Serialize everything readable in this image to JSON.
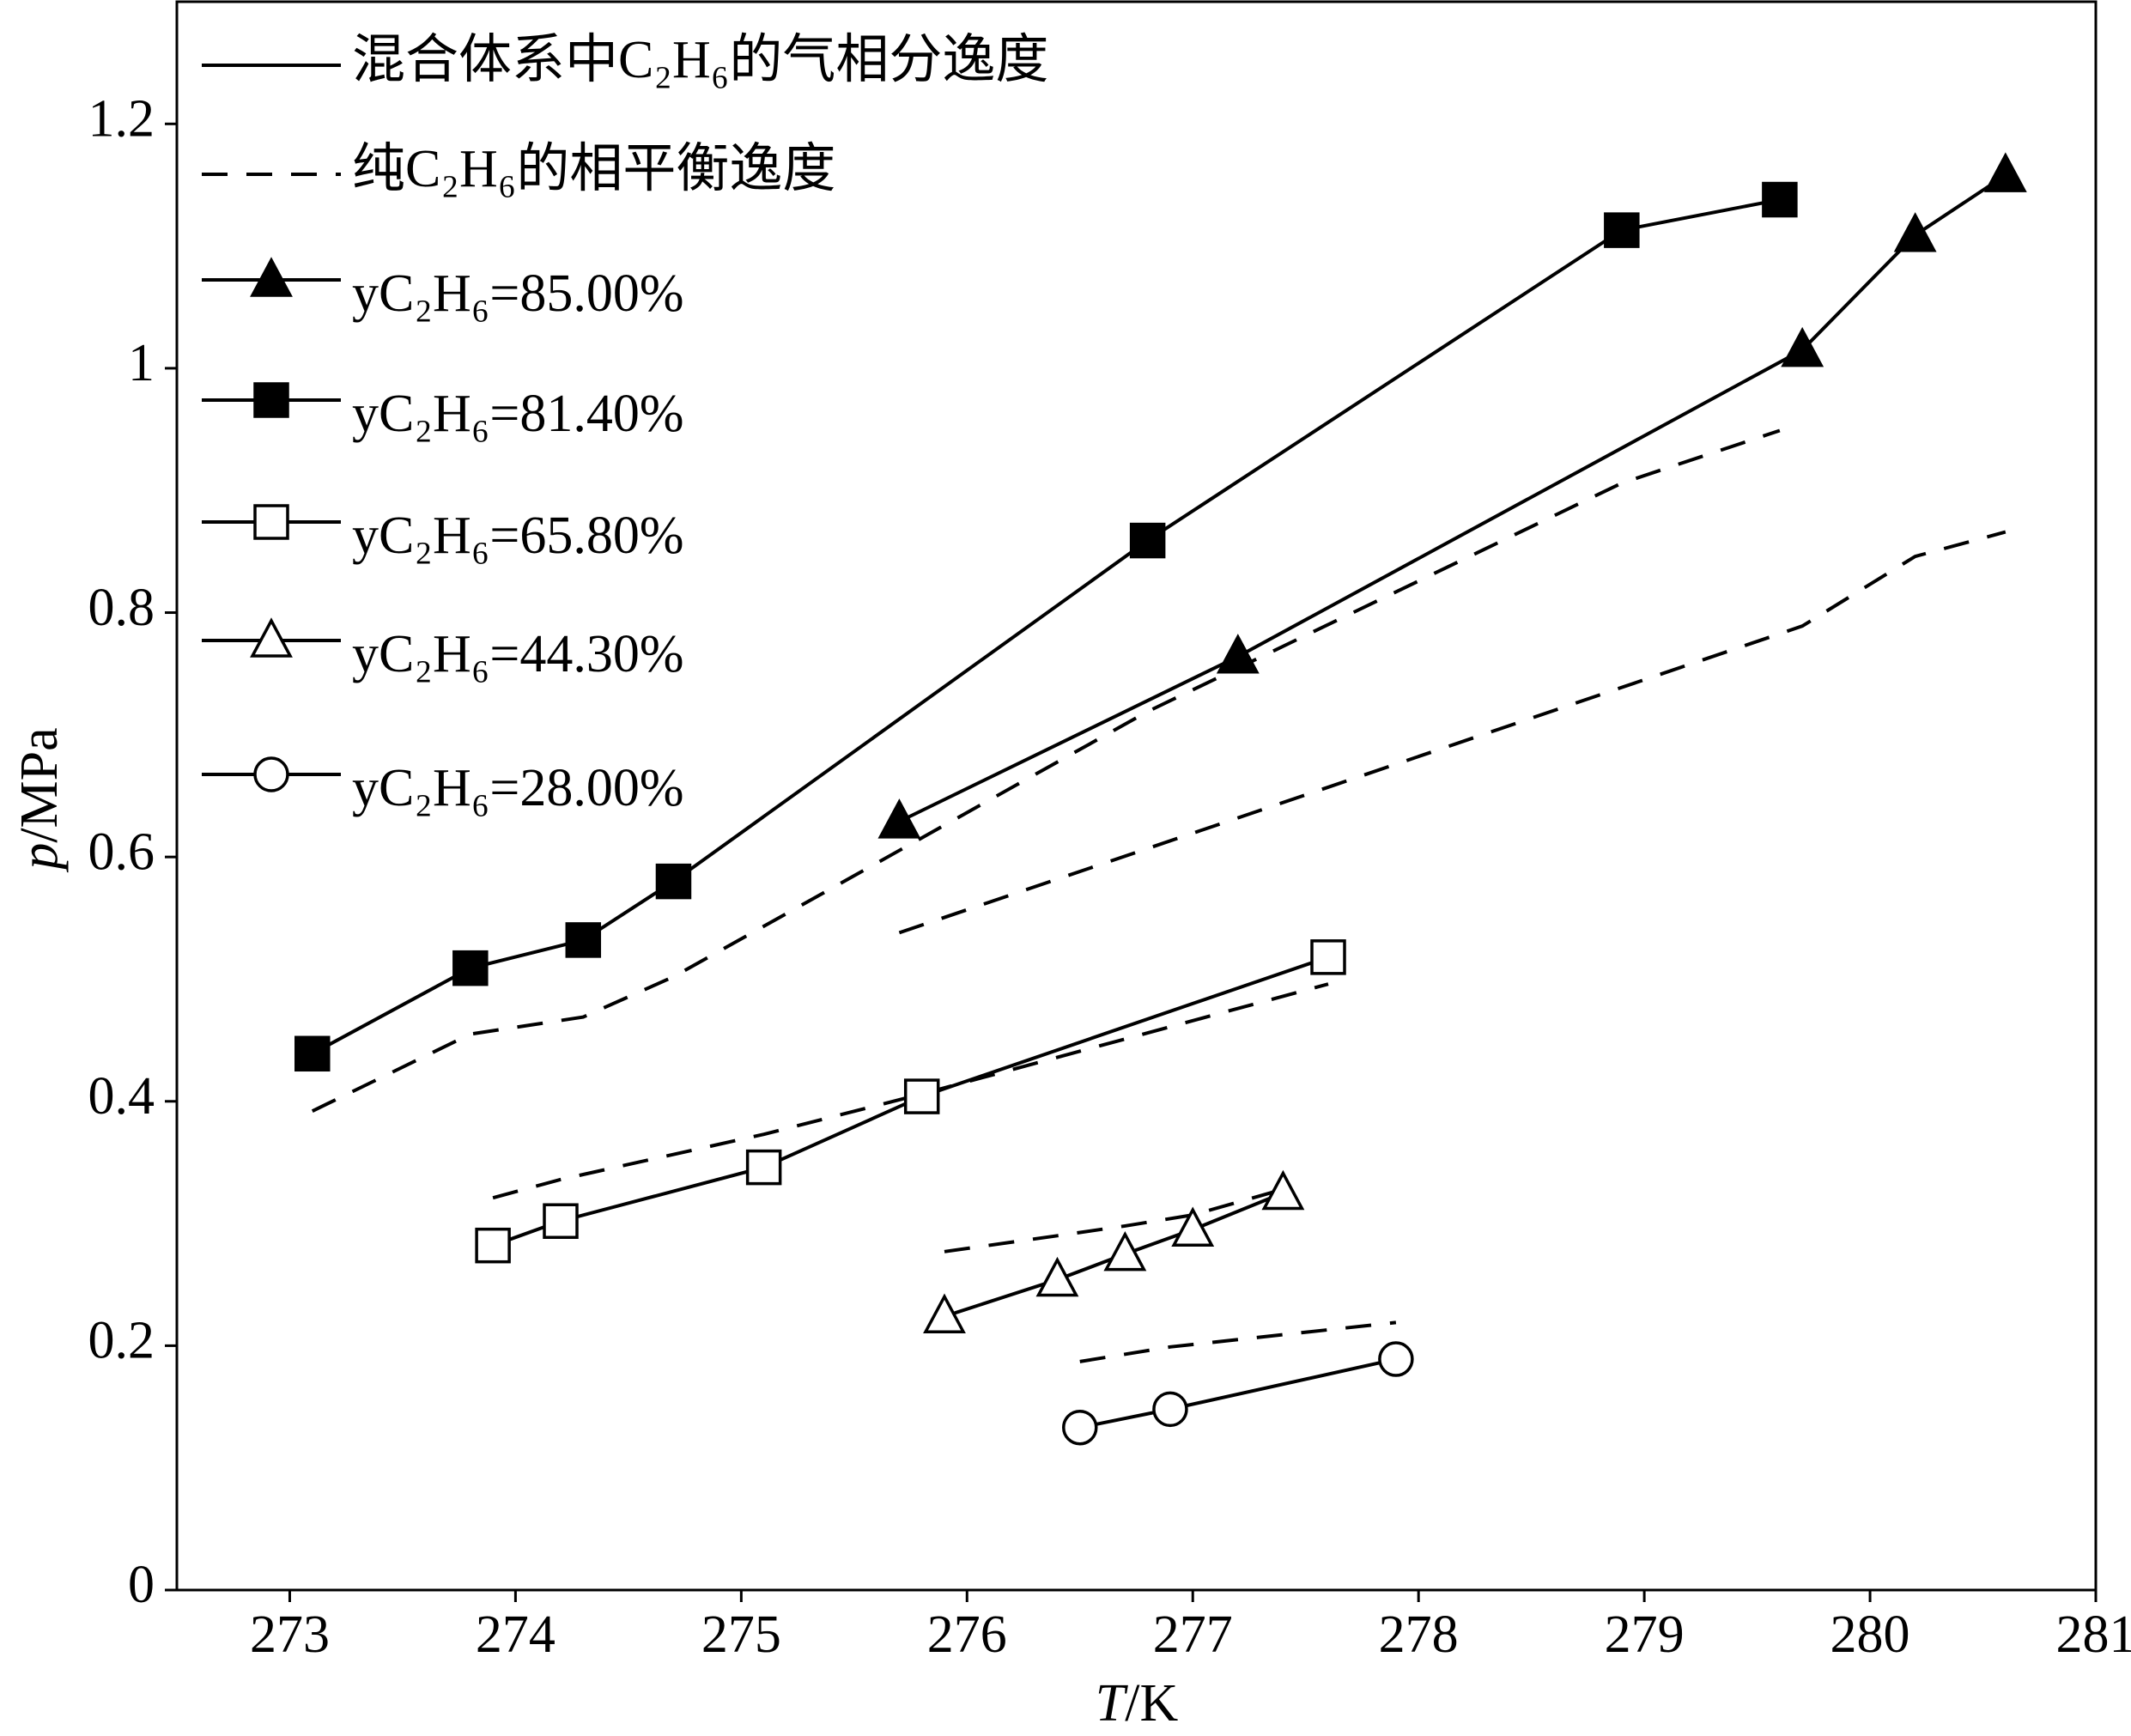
{
  "chart_data": {
    "type": "line",
    "x_label": "T/K",
    "y_label": "p/MPa",
    "xlim": [
      272.5,
      281
    ],
    "xticks": [
      273,
      274,
      275,
      276,
      277,
      278,
      279,
      280,
      281
    ],
    "ylim": [
      0,
      1.3
    ],
    "yticks": [
      0,
      0.2,
      0.4,
      0.6,
      0.8,
      1.0,
      1.2
    ],
    "line_legend": [
      {
        "name": "混合体系中C₂H₆的气相分逸度",
        "style": "solid"
      },
      {
        "name": "纯C₂H₆的相平衡逸度",
        "style": "dashed"
      }
    ],
    "color": "#000000",
    "series": [
      {
        "name": "yC₂H₆=85.00%",
        "marker": "triangle",
        "filled": true,
        "x": [
          275.7,
          277.2,
          279.7,
          280.2,
          280.6
        ],
        "values": [
          0.629,
          0.764,
          1.015,
          1.109,
          1.158
        ],
        "ref_values": [
          0.538,
          0.632,
          0.789,
          0.846,
          0.866
        ]
      },
      {
        "name": "yC₂H₆=81.40%",
        "marker": "square",
        "filled": true,
        "x": [
          273.1,
          273.8,
          274.3,
          274.7,
          276.8,
          278.9,
          279.6
        ],
        "values": [
          0.439,
          0.509,
          0.532,
          0.58,
          0.859,
          1.113,
          1.138
        ],
        "ref_values": [
          0.392,
          0.455,
          0.469,
          0.502,
          0.719,
          0.906,
          0.949
        ]
      },
      {
        "name": "yC₂H₆=65.80%",
        "marker": "square",
        "filled": false,
        "x": [
          273.9,
          274.2,
          275.1,
          275.8,
          277.6
        ],
        "values": [
          0.282,
          0.302,
          0.346,
          0.404,
          0.518
        ],
        "ref_values": [
          0.321,
          0.336,
          0.373,
          0.406,
          0.496
        ]
      },
      {
        "name": "yC₂H₆=44.30%",
        "marker": "triangle",
        "filled": false,
        "x": [
          275.9,
          276.4,
          276.7,
          277.0,
          277.4
        ],
        "values": [
          0.224,
          0.254,
          0.275,
          0.295,
          0.325
        ],
        "ref_values": [
          0.277,
          0.29,
          0.298,
          0.307,
          0.328
        ]
      },
      {
        "name": "yC₂H₆=28.00%",
        "marker": "circle",
        "filled": false,
        "x": [
          276.5,
          276.9,
          277.9
        ],
        "values": [
          0.133,
          0.148,
          0.189
        ],
        "ref_values": [
          0.187,
          0.199,
          0.219
        ]
      }
    ]
  }
}
